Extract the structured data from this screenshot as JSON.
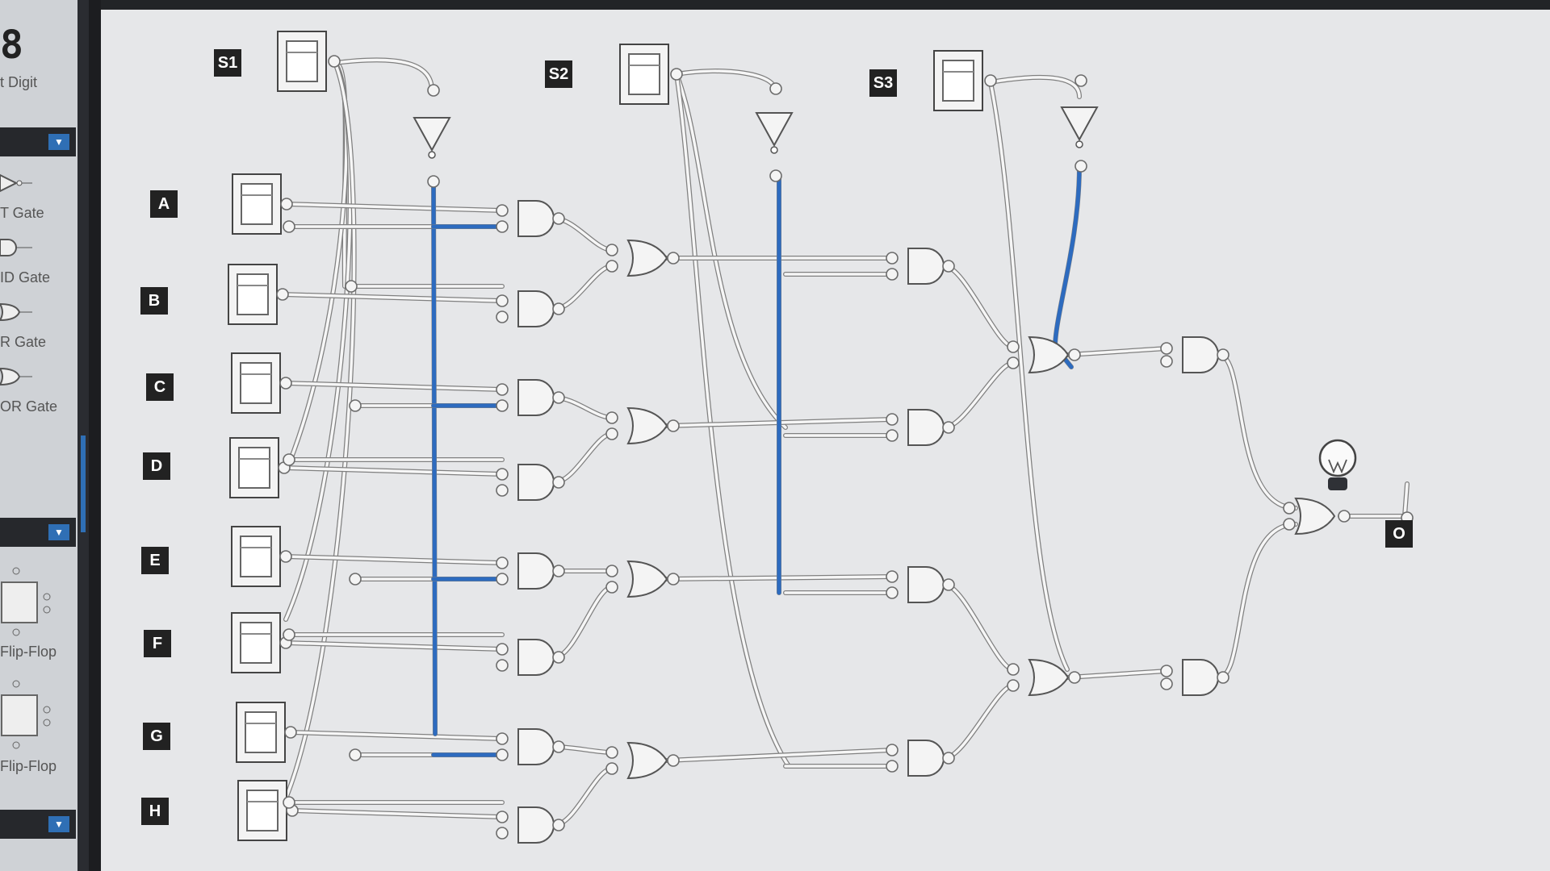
{
  "sidebar": {
    "digit_glyph": "8",
    "items": [
      {
        "label": "t Digit"
      },
      {
        "label": "T Gate"
      },
      {
        "label": "ID Gate"
      },
      {
        "label": "R Gate"
      },
      {
        "label": "OR Gate"
      },
      {
        "label": "Flip-Flop"
      },
      {
        "label": "Flip-Flop"
      }
    ],
    "dropdown_icon": "chevron-down-icon"
  },
  "diagram": {
    "select_labels": [
      "S1",
      "S2",
      "S3"
    ],
    "input_labels": [
      "A",
      "B",
      "C",
      "D",
      "E",
      "F",
      "G",
      "H"
    ],
    "output_label": "O",
    "colors": {
      "active_wire": "#2d6bbf",
      "wire": "#9a9a9a",
      "gate_fill": "#f4f4f4",
      "tag_bg": "#222222"
    }
  }
}
